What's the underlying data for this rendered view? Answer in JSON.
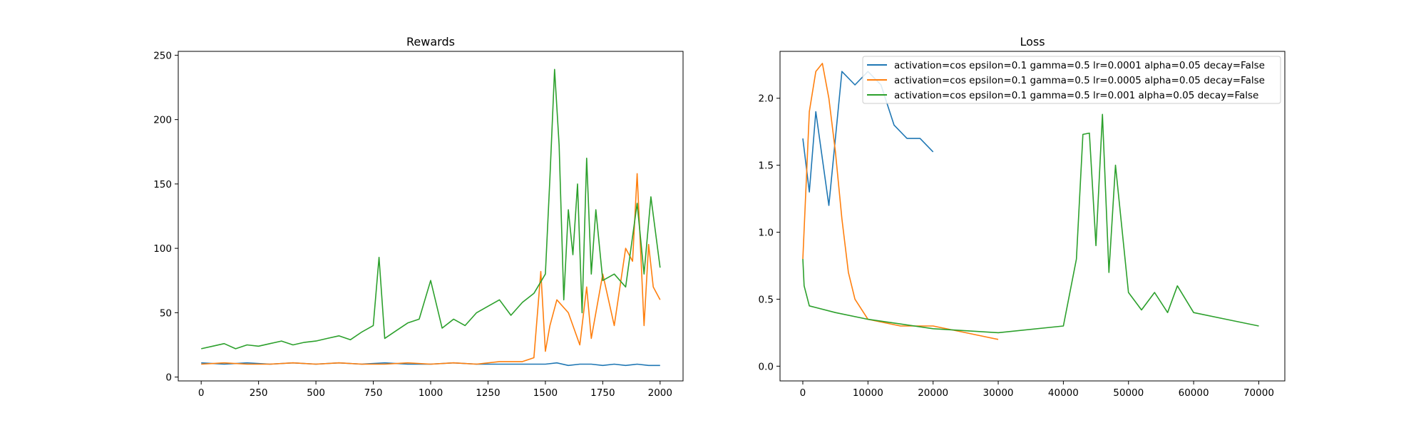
{
  "figure": {
    "rewards_title": "Rewards",
    "loss_title": "Loss"
  },
  "legend": {
    "entries": [
      "activation=cos epsilon=0.1 gamma=0.5 lr=0.0001 alpha=0.05 decay=False",
      "activation=cos epsilon=0.1 gamma=0.5 lr=0.0005 alpha=0.05 decay=False",
      "activation=cos epsilon=0.1 gamma=0.5 lr=0.001 alpha=0.05 decay=False"
    ],
    "colors": [
      "#1f77b4",
      "#ff7f0e",
      "#2ca02c"
    ],
    "placement": "top-right"
  },
  "chart_data": [
    {
      "type": "line",
      "title": "Rewards",
      "xlabel": "",
      "ylabel": "",
      "xlim": [
        -100,
        2100
      ],
      "ylim": [
        -3,
        253
      ],
      "xticks": [
        0,
        250,
        500,
        750,
        1000,
        1250,
        1500,
        1750,
        2000
      ],
      "yticks": [
        0,
        50,
        100,
        150,
        200,
        250
      ],
      "grid": false,
      "series": [
        {
          "name": "activation=cos epsilon=0.1 gamma=0.5 lr=0.0001 alpha=0.05 decay=False",
          "color": "#1f77b4",
          "x": [
            0,
            100,
            200,
            300,
            400,
            500,
            600,
            700,
            800,
            900,
            1000,
            1100,
            1200,
            1300,
            1400,
            1500,
            1550,
            1600,
            1650,
            1700,
            1750,
            1800,
            1850,
            1900,
            1950,
            2000
          ],
          "values": [
            11,
            10,
            11,
            10,
            11,
            10,
            11,
            10,
            11,
            10,
            10,
            11,
            10,
            10,
            10,
            10,
            11,
            9,
            10,
            10,
            9,
            10,
            9,
            10,
            9,
            9
          ]
        },
        {
          "name": "activation=cos epsilon=0.1 gamma=0.5 lr=0.0005 alpha=0.05 decay=False",
          "color": "#ff7f0e",
          "x": [
            0,
            100,
            200,
            300,
            400,
            500,
            600,
            700,
            800,
            900,
            1000,
            1100,
            1200,
            1300,
            1400,
            1450,
            1480,
            1500,
            1520,
            1550,
            1600,
            1650,
            1680,
            1700,
            1750,
            1800,
            1850,
            1880,
            1900,
            1930,
            1950,
            1970,
            2000
          ],
          "values": [
            10,
            11,
            10,
            10,
            11,
            10,
            11,
            10,
            10,
            11,
            10,
            11,
            10,
            12,
            12,
            15,
            82,
            20,
            40,
            60,
            50,
            25,
            70,
            30,
            80,
            40,
            100,
            90,
            158,
            40,
            103,
            70,
            60
          ]
        },
        {
          "name": "activation=cos epsilon=0.1 gamma=0.5 lr=0.001 alpha=0.05 decay=False",
          "color": "#2ca02c",
          "x": [
            0,
            50,
            100,
            150,
            200,
            250,
            300,
            350,
            400,
            450,
            500,
            550,
            600,
            650,
            700,
            750,
            775,
            800,
            850,
            900,
            950,
            1000,
            1050,
            1100,
            1150,
            1200,
            1250,
            1300,
            1350,
            1400,
            1450,
            1500,
            1520,
            1540,
            1560,
            1580,
            1600,
            1620,
            1640,
            1660,
            1680,
            1700,
            1720,
            1750,
            1800,
            1850,
            1900,
            1930,
            1960,
            2000
          ],
          "values": [
            22,
            24,
            26,
            22,
            25,
            24,
            26,
            28,
            25,
            27,
            28,
            30,
            32,
            29,
            35,
            40,
            93,
            30,
            36,
            42,
            45,
            75,
            38,
            45,
            40,
            50,
            55,
            60,
            48,
            58,
            65,
            80,
            155,
            239,
            180,
            60,
            130,
            95,
            150,
            50,
            170,
            80,
            130,
            75,
            80,
            70,
            135,
            80,
            140,
            85
          ]
        }
      ]
    },
    {
      "type": "line",
      "title": "Loss",
      "xlabel": "",
      "ylabel": "",
      "xlim": [
        -3500,
        74000
      ],
      "ylim": [
        -0.11,
        2.35
      ],
      "xticks": [
        0,
        10000,
        20000,
        30000,
        40000,
        50000,
        60000,
        70000
      ],
      "yticks": [
        0.0,
        0.5,
        1.0,
        1.5,
        2.0
      ],
      "grid": false,
      "series": [
        {
          "name": "activation=cos epsilon=0.1 gamma=0.5 lr=0.0001 alpha=0.05 decay=False",
          "color": "#1f77b4",
          "x": [
            0,
            1000,
            2000,
            4000,
            6000,
            8000,
            10000,
            12000,
            14000,
            16000,
            18000,
            20000
          ],
          "values": [
            1.7,
            1.3,
            1.9,
            1.2,
            2.2,
            2.1,
            2.2,
            2.1,
            1.8,
            1.7,
            1.7,
            1.6
          ]
        },
        {
          "name": "activation=cos epsilon=0.1 gamma=0.5 lr=0.0005 alpha=0.05 decay=False",
          "color": "#ff7f0e",
          "x": [
            0,
            1000,
            2000,
            3000,
            4000,
            5000,
            6000,
            7000,
            8000,
            10000,
            15000,
            20000,
            25000,
            30000
          ],
          "values": [
            0.8,
            1.9,
            2.2,
            2.26,
            2.0,
            1.6,
            1.1,
            0.7,
            0.5,
            0.35,
            0.3,
            0.3,
            0.25,
            0.2
          ]
        },
        {
          "name": "activation=cos epsilon=0.1 gamma=0.5 lr=0.001 alpha=0.05 decay=False",
          "color": "#2ca02c",
          "x": [
            0,
            200,
            1000,
            5000,
            10000,
            20000,
            30000,
            40000,
            42000,
            43000,
            44000,
            45000,
            46000,
            47000,
            48000,
            50000,
            52000,
            54000,
            56000,
            57500,
            60000,
            65000,
            70000
          ],
          "values": [
            0.8,
            0.6,
            0.45,
            0.4,
            0.35,
            0.28,
            0.25,
            0.3,
            0.8,
            1.73,
            1.74,
            0.9,
            1.88,
            0.7,
            1.5,
            0.55,
            0.42,
            0.55,
            0.4,
            0.6,
            0.4,
            0.35,
            0.3
          ]
        }
      ]
    }
  ]
}
